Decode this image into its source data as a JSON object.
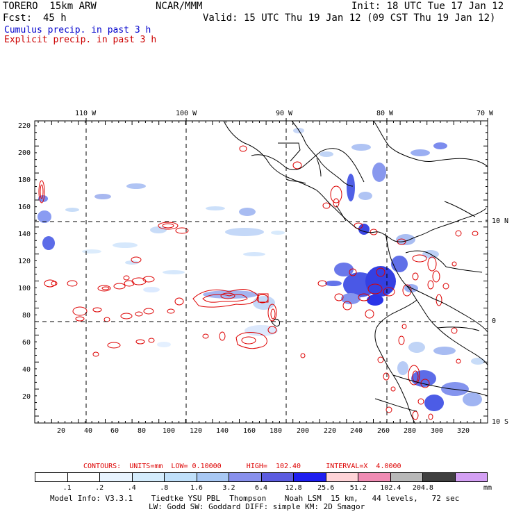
{
  "header": {
    "model": "TORERO  15km ARW",
    "center": "NCAR/MMM",
    "init": "Init: 18 UTC Tue 17 Jan 12",
    "fcst_label": "Fcst:",
    "fcst_value": "45 h",
    "valid": "Valid: 15 UTC Thu 19 Jan 12 (09 CST Thu 19 Jan 12)",
    "cumulus": "Cumulus precip. in past 3 h",
    "explicit": "Explicit precip. in past 3 h"
  },
  "colors": {
    "cumulus_text": "#0000cc",
    "explicit_text": "#cc0000",
    "contour": "#dd0000",
    "coast": "#000000"
  },
  "lon_labels": [
    "110 W",
    "100 W",
    "90 W",
    "80 W",
    "70 W"
  ],
  "lat_labels": [
    "10 N",
    "0",
    "10 S"
  ],
  "y_ticks": [
    "220",
    "200",
    "180",
    "160",
    "140",
    "120",
    "100",
    "80",
    "60",
    "40",
    "20"
  ],
  "x_ticks": [
    "20",
    "40",
    "60",
    "80",
    "100",
    "120",
    "140",
    "160",
    "180",
    "200",
    "220",
    "240",
    "260",
    "280",
    "300",
    "320"
  ],
  "contours": {
    "line": "CONTOURS:  UNITS=mm  LOW= 0.10000      HIGH=  102.40      INTERVAL=X  4.0000"
  },
  "colorbar": {
    "colors": [
      "#ffffff",
      "#ffffff",
      "#e8f4ff",
      "#d4ecfc",
      "#c0e0fa",
      "#a8c8f4",
      "#8890ec",
      "#5c5ce0",
      "#1e1ef0",
      "#ffd4d8",
      "#f08cb4",
      "#b8b8b8",
      "#404040",
      "#d4a0f4"
    ],
    "labels": [
      ".1",
      ".2",
      ".4",
      ".8",
      "1.6",
      "3.2",
      "6.4",
      "12.8",
      "25.6",
      "51.2",
      "102.4",
      "204.8"
    ],
    "unit": "mm"
  },
  "footer": {
    "line1": "Model Info: V3.3.1    Tiedtke YSU PBL  Thompson    Noah LSM  15 km,   44 levels,   72 sec",
    "line2": "LW: Godd SW: Goddard DIFF: simple KM: 2D Smagor"
  }
}
